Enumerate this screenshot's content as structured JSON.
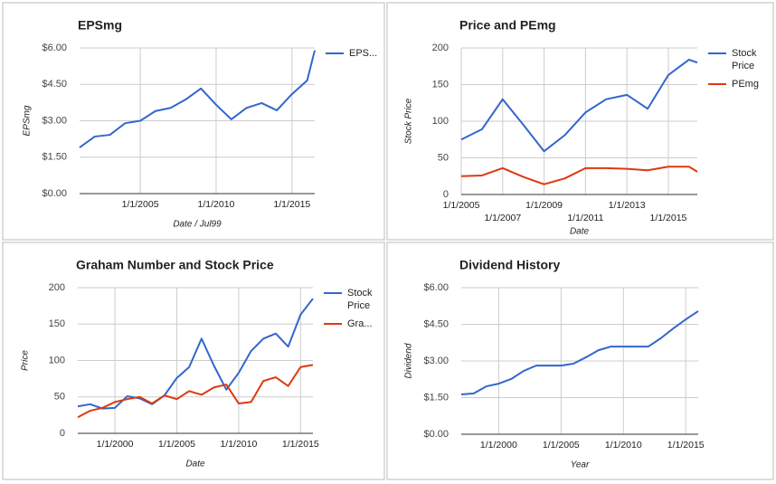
{
  "chart_data": [
    {
      "type": "line",
      "title": "EPSmg",
      "ylabel": "EPSmg",
      "xlabel": "Date / Jul99",
      "x": [
        2001,
        2002,
        2003,
        2004,
        2005,
        2006,
        2007,
        2008,
        2009,
        2010,
        2011,
        2012,
        2013,
        2014,
        2015,
        2016,
        2016.5
      ],
      "series": [
        {
          "name": "EPS...",
          "color": "#3366cc",
          "values": [
            1.9,
            2.35,
            2.42,
            2.9,
            3.0,
            3.4,
            3.53,
            3.88,
            4.33,
            3.66,
            3.06,
            3.53,
            3.73,
            3.43,
            4.1,
            4.66,
            5.9
          ]
        }
      ],
      "xlim": [
        2001,
        2016.5
      ],
      "xticks": [
        {
          "value": 2005,
          "label": "1/1/2005"
        },
        {
          "value": 2010,
          "label": "1/1/2010"
        },
        {
          "value": 2015,
          "label": "1/1/2015"
        }
      ],
      "ylim": [
        0,
        6
      ],
      "yticks": [
        {
          "value": 0,
          "label": "$0.00"
        },
        {
          "value": 1.5,
          "label": "$1.50"
        },
        {
          "value": 3,
          "label": "$3.00"
        },
        {
          "value": 4.5,
          "label": "$4.50"
        },
        {
          "value": 6,
          "label": "$6.00"
        }
      ],
      "grid": true,
      "legend": "right"
    },
    {
      "type": "line",
      "title": "Price and PEmg",
      "ylabel": "Stock Price",
      "xlabel": "Date",
      "x": [
        2005,
        2006,
        2007,
        2008,
        2009,
        2010,
        2011,
        2012,
        2013,
        2014,
        2015,
        2016,
        2016.4
      ],
      "series": [
        {
          "name": "Stock Price",
          "color": "#3366cc",
          "values": [
            75,
            89,
            130,
            95,
            59,
            81,
            112,
            130,
            136,
            117,
            163,
            184,
            180
          ]
        },
        {
          "name": "PEmg",
          "color": "#dc3912",
          "values": [
            25,
            26,
            36,
            24,
            14,
            22,
            36,
            36,
            35,
            33,
            38,
            38,
            31
          ]
        }
      ],
      "xlim": [
        2005,
        2016.4
      ],
      "xticks": [
        {
          "value": 2005,
          "label": "1/1/2005"
        },
        {
          "value": 2007,
          "label": "1/1/2007"
        },
        {
          "value": 2009,
          "label": "1/1/2009"
        },
        {
          "value": 2011,
          "label": "1/1/2011"
        },
        {
          "value": 2013,
          "label": "1/1/2013"
        },
        {
          "value": 2015,
          "label": "1/1/2015"
        }
      ],
      "ylim": [
        0,
        200
      ],
      "yticks": [
        0,
        50,
        100,
        150,
        200
      ],
      "grid": true,
      "legend": "right"
    },
    {
      "type": "line",
      "title": "Graham Number and Stock Price",
      "ylabel": "Price",
      "xlabel": "Date",
      "x": [
        1997,
        1998,
        1999,
        2000,
        2001,
        2002,
        2003,
        2004,
        2005,
        2006,
        2007,
        2008,
        2009,
        2010,
        2011,
        2012,
        2013,
        2014,
        2015,
        2016
      ],
      "series": [
        {
          "name": "Stock Price",
          "color": "#3366cc",
          "values": [
            37,
            40,
            34,
            35,
            51,
            48,
            40,
            52,
            76,
            91,
            130,
            93,
            60,
            83,
            113,
            130,
            137,
            119,
            163,
            185
          ]
        },
        {
          "name": "Gra...",
          "color": "#dc3912",
          "values": [
            22,
            31,
            35,
            43,
            47,
            50,
            41,
            52,
            47,
            58,
            53,
            63,
            67,
            41,
            43,
            72,
            77,
            65,
            91,
            94
          ]
        }
      ],
      "xlim": [
        1997,
        2016
      ],
      "xticks": [
        {
          "value": 2000,
          "label": "1/1/2000"
        },
        {
          "value": 2005,
          "label": "1/1/2005"
        },
        {
          "value": 2010,
          "label": "1/1/2010"
        },
        {
          "value": 2015,
          "label": "1/1/2015"
        }
      ],
      "ylim": [
        0,
        200
      ],
      "yticks": [
        0,
        50,
        100,
        150,
        200
      ],
      "grid": true,
      "legend": "right"
    },
    {
      "type": "line",
      "title": "Dividend History",
      "ylabel": "Dividend",
      "xlabel": "Year",
      "x": [
        1997,
        1998,
        1999,
        2000,
        2001,
        2002,
        2003,
        2004,
        2005,
        2006,
        2007,
        2008,
        2009,
        2010,
        2011,
        2012,
        2013,
        2014,
        2015,
        2016
      ],
      "series": [
        {
          "color": "#3366cc",
          "values": [
            1.63,
            1.67,
            1.96,
            2.07,
            2.26,
            2.59,
            2.81,
            2.81,
            2.81,
            2.89,
            3.15,
            3.44,
            3.59,
            3.59,
            3.59,
            3.59,
            3.93,
            4.33,
            4.7,
            5.04
          ]
        }
      ],
      "xlim": [
        1997,
        2016
      ],
      "xticks": [
        {
          "value": 2000,
          "label": "1/1/2000"
        },
        {
          "value": 2005,
          "label": "1/1/2005"
        },
        {
          "value": 2010,
          "label": "1/1/2010"
        },
        {
          "value": 2015,
          "label": "1/1/2015"
        }
      ],
      "ylim": [
        0,
        6
      ],
      "yticks": [
        {
          "value": 0,
          "label": "$0.00"
        },
        {
          "value": 1.5,
          "label": "$1.50"
        },
        {
          "value": 3,
          "label": "$3.00"
        },
        {
          "value": 4.5,
          "label": "$4.50"
        },
        {
          "value": 6,
          "label": "$6.00"
        }
      ],
      "grid": true,
      "legend": "none"
    }
  ]
}
